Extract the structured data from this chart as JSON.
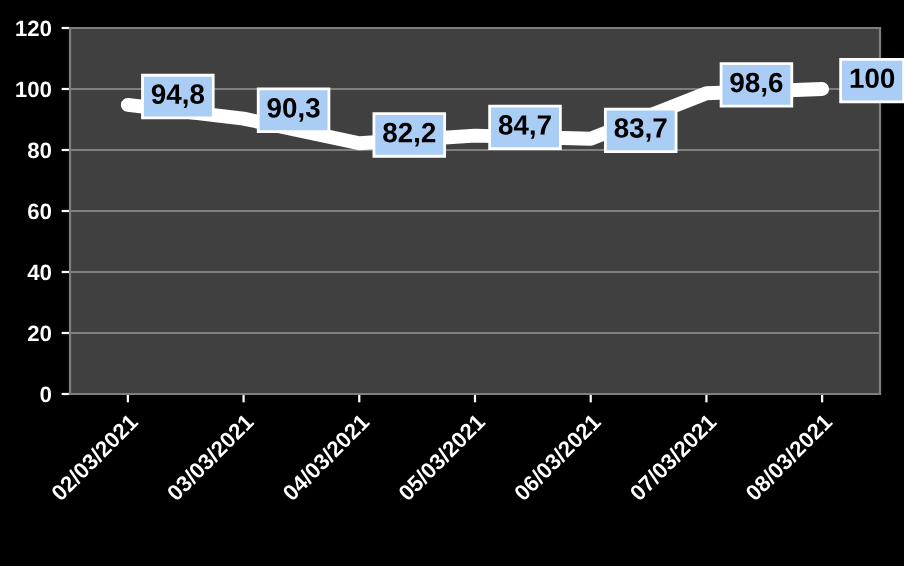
{
  "chart_data": {
    "type": "line",
    "categories": [
      "02/03/2021",
      "03/03/2021",
      "04/03/2021",
      "05/03/2021",
      "06/03/2021",
      "07/03/2021",
      "08/03/2021"
    ],
    "values": [
      94.8,
      90.3,
      82.2,
      84.7,
      83.7,
      98.6,
      100
    ],
    "value_labels": [
      "94,8",
      "90,3",
      "82,2",
      "84,7",
      "83,7",
      "98,6",
      "100"
    ],
    "color": "#ffffff",
    "ylim": [
      0,
      120
    ],
    "yticks": [
      0,
      20,
      40,
      60,
      80,
      100,
      120
    ],
    "grid": "y",
    "marker": "none",
    "line_style": "solid"
  }
}
